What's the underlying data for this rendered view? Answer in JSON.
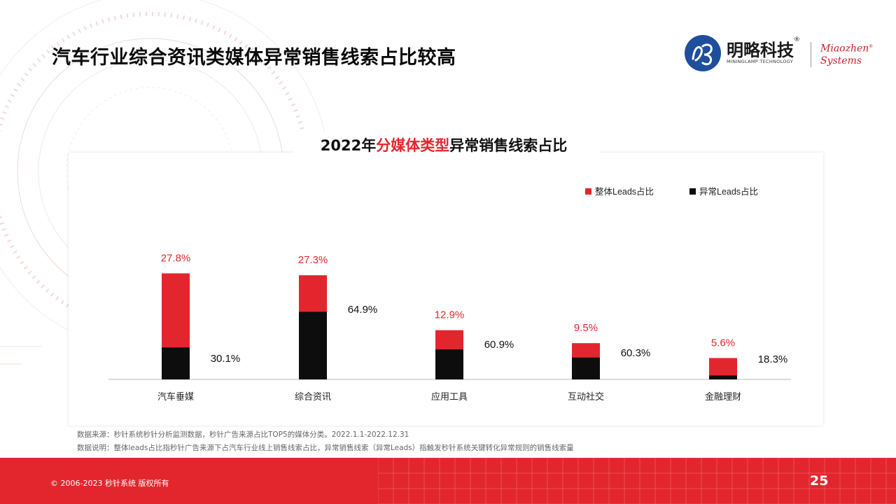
{
  "page": {
    "title": "汽车行业综合资讯类媒体异常销售线索占比较高",
    "page_number": "25",
    "copyright": "© 2006-2023 秒针系统 版权所有"
  },
  "logo": {
    "brand_cn": "明略科技",
    "brand_reg": "®",
    "brand_en": "MININGLAMP TECHNOLOGY",
    "partner_line1": "Miaozhen",
    "partner_line2": "Systems",
    "partner_reg": "®"
  },
  "chart_title": {
    "prefix": "2022年",
    "highlight": "分媒体类型",
    "suffix": "异常销售线索占比"
  },
  "notes": {
    "source": "数据来源：秒针系统秒针分析监测数据，秒针广告来源占比TOP5的媒体分类。2022.1.1-2022.12.31",
    "explanation": "数据说明：整体leads占比指秒针广告来源下占汽车行业线上销售线索占比，异常销售线索（异常Leads）指触发秒针系统关键转化异常规则的销售线索量"
  },
  "colors": {
    "accent": "#e3262d",
    "dark": "#0d0d0d"
  },
  "chart_data": {
    "type": "bar",
    "stacked": true,
    "legend_position": "top-right",
    "grid": false,
    "categories": [
      "汽车垂媒",
      "综合资讯",
      "应用工具",
      "互动社交",
      "金融理财"
    ],
    "series": [
      {
        "name": "整体Leads占比",
        "color": "#e3262d",
        "values": [
          27.8,
          27.3,
          12.9,
          9.5,
          5.6
        ],
        "labels": [
          "27.8%",
          "27.3%",
          "12.9%",
          "9.5%",
          "5.6%"
        ]
      },
      {
        "name": "异常Leads占比",
        "color": "#0d0d0d",
        "values": [
          30.1,
          64.9,
          60.9,
          60.3,
          18.3
        ],
        "labels": [
          "30.1%",
          "64.9%",
          "60.9%",
          "60.3%",
          "18.3%"
        ],
        "share_of_total": true
      }
    ]
  }
}
